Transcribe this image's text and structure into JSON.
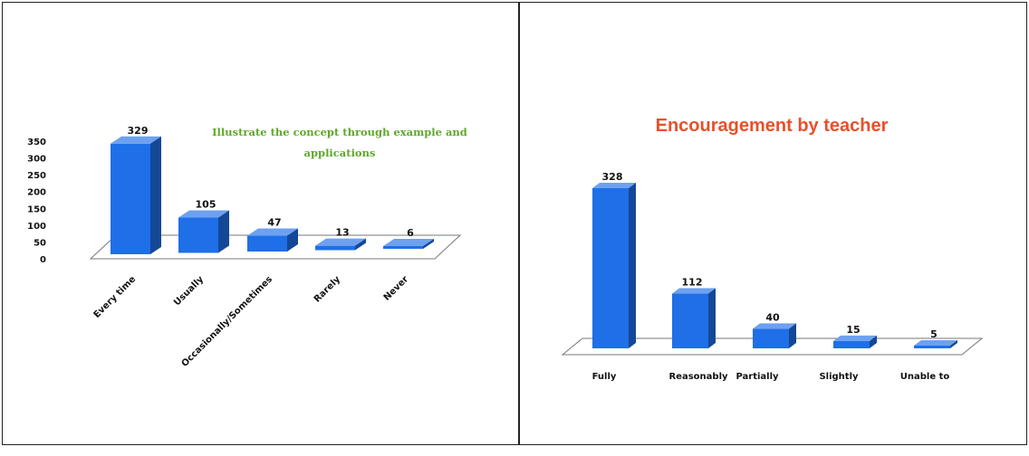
{
  "chart_data": [
    {
      "type": "bar",
      "title": "Illustrate the concept through example and applications",
      "title_color": "#5fa82a",
      "categories": [
        "Every time",
        "Usually",
        "Occasionally/Sometimes",
        "Rarely",
        "Never"
      ],
      "values": [
        329,
        105,
        47,
        13,
        6
      ],
      "ylim": [
        0,
        350
      ],
      "yticks": [
        0,
        50,
        100,
        150,
        200,
        250,
        300,
        350
      ],
      "bar_color": "#1f6fe8",
      "three_d": true,
      "xlabel": "",
      "ylabel": ""
    },
    {
      "type": "bar",
      "title": "Encouragement  by teacher",
      "title_color": "#e8502a",
      "categories": [
        "Fully",
        "Reasonably",
        "Partially",
        "Slightly",
        "Unable to"
      ],
      "values": [
        328,
        112,
        40,
        15,
        5
      ],
      "bar_color": "#1f6fe8",
      "three_d": true,
      "xlabel": "",
      "ylabel": ""
    }
  ]
}
